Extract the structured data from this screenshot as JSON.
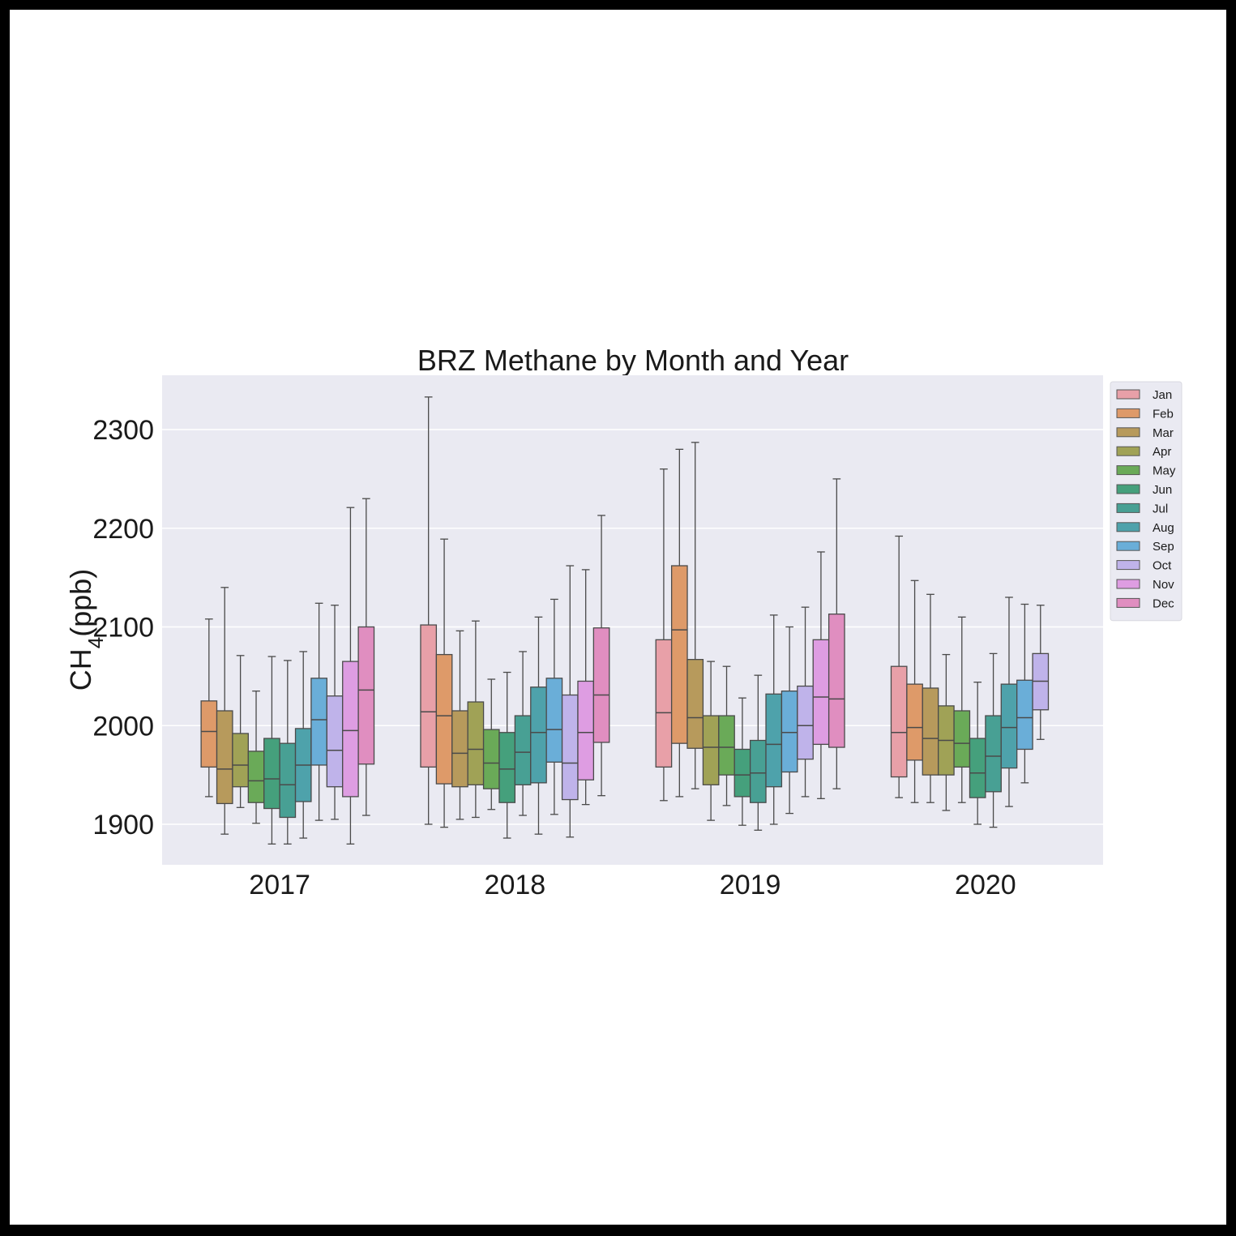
{
  "chart_data": {
    "type": "boxplot",
    "title": "BRZ Methane by Month and Year",
    "ylabel_main": "CH",
    "ylabel_sub": "4",
    "ylabel_tail": "(ppb)",
    "xlabel": "",
    "ylim": [
      1860,
      2355
    ],
    "yticks": [
      1900,
      2000,
      2100,
      2200,
      2300
    ],
    "grid": true,
    "legend_placement": "upper-right-outside",
    "categories": [
      "2017",
      "2018",
      "2019",
      "2020"
    ],
    "series": [
      {
        "name": "Jan",
        "color": "#e8a0a8",
        "boxes": [
          null,
          {
            "low": 1900,
            "q1": 1958,
            "median": 2014,
            "q3": 2102,
            "high": 2333
          },
          {
            "low": 1924,
            "q1": 1958,
            "median": 2013,
            "q3": 2087,
            "high": 2260
          },
          {
            "low": 1927,
            "q1": 1948,
            "median": 1993,
            "q3": 2060,
            "high": 2192
          }
        ]
      },
      {
        "name": "Feb",
        "color": "#de9a69",
        "boxes": [
          {
            "low": 1928,
            "q1": 1958,
            "median": 1994,
            "q3": 2025,
            "high": 2108
          },
          {
            "low": 1897,
            "q1": 1941,
            "median": 2010,
            "q3": 2072,
            "high": 2189
          },
          {
            "low": 1928,
            "q1": 1982,
            "median": 2097,
            "q3": 2162,
            "high": 2280
          },
          {
            "low": 1922,
            "q1": 1965,
            "median": 1998,
            "q3": 2042,
            "high": 2147
          }
        ]
      },
      {
        "name": "Mar",
        "color": "#b79a5c",
        "boxes": [
          {
            "low": 1890,
            "q1": 1921,
            "median": 1956,
            "q3": 2015,
            "high": 2140
          },
          {
            "low": 1905,
            "q1": 1938,
            "median": 1972,
            "q3": 2015,
            "high": 2096
          },
          {
            "low": 1936,
            "q1": 1977,
            "median": 2008,
            "q3": 2067,
            "high": 2287
          },
          {
            "low": 1922,
            "q1": 1950,
            "median": 1987,
            "q3": 2038,
            "high": 2133
          }
        ]
      },
      {
        "name": "Apr",
        "color": "#a0a256",
        "boxes": [
          {
            "low": 1917,
            "q1": 1938,
            "median": 1960,
            "q3": 1992,
            "high": 2071
          },
          {
            "low": 1907,
            "q1": 1940,
            "median": 1976,
            "q3": 2024,
            "high": 2106
          },
          {
            "low": 1904,
            "q1": 1940,
            "median": 1978,
            "q3": 2010,
            "high": 2065
          },
          {
            "low": 1914,
            "q1": 1950,
            "median": 1985,
            "q3": 2020,
            "high": 2072
          }
        ]
      },
      {
        "name": "May",
        "color": "#6aaa58",
        "boxes": [
          {
            "low": 1901,
            "q1": 1922,
            "median": 1944,
            "q3": 1974,
            "high": 2035
          },
          {
            "low": 1915,
            "q1": 1936,
            "median": 1962,
            "q3": 1996,
            "high": 2047
          },
          {
            "low": 1919,
            "q1": 1950,
            "median": 1978,
            "q3": 2010,
            "high": 2060
          },
          {
            "low": 1922,
            "q1": 1958,
            "median": 1982,
            "q3": 2015,
            "high": 2110
          }
        ]
      },
      {
        "name": "Jun",
        "color": "#45a07c",
        "boxes": [
          {
            "low": 1880,
            "q1": 1916,
            "median": 1946,
            "q3": 1987,
            "high": 2070
          },
          {
            "low": 1886,
            "q1": 1922,
            "median": 1956,
            "q3": 1993,
            "high": 2054
          },
          {
            "low": 1899,
            "q1": 1928,
            "median": 1950,
            "q3": 1976,
            "high": 2028
          },
          {
            "low": 1900,
            "q1": 1927,
            "median": 1952,
            "q3": 1987,
            "high": 2044
          }
        ]
      },
      {
        "name": "Jul",
        "color": "#48a094",
        "boxes": [
          {
            "low": 1880,
            "q1": 1907,
            "median": 1940,
            "q3": 1982,
            "high": 2066
          },
          {
            "low": 1909,
            "q1": 1940,
            "median": 1973,
            "q3": 2010,
            "high": 2075
          },
          {
            "low": 1894,
            "q1": 1922,
            "median": 1952,
            "q3": 1985,
            "high": 2051
          },
          {
            "low": 1897,
            "q1": 1933,
            "median": 1969,
            "q3": 2010,
            "high": 2073
          }
        ]
      },
      {
        "name": "Aug",
        "color": "#4ea2ab",
        "boxes": [
          {
            "low": 1886,
            "q1": 1923,
            "median": 1960,
            "q3": 1997,
            "high": 2075
          },
          {
            "low": 1890,
            "q1": 1942,
            "median": 1993,
            "q3": 2039,
            "high": 2110
          },
          {
            "low": 1900,
            "q1": 1938,
            "median": 1981,
            "q3": 2032,
            "high": 2112
          },
          {
            "low": 1918,
            "q1": 1957,
            "median": 1998,
            "q3": 2042,
            "high": 2130
          }
        ]
      },
      {
        "name": "Sep",
        "color": "#6aaed8",
        "boxes": [
          {
            "low": 1904,
            "q1": 1960,
            "median": 2006,
            "q3": 2048,
            "high": 2124
          },
          {
            "low": 1910,
            "q1": 1963,
            "median": 1996,
            "q3": 2048,
            "high": 2128
          },
          {
            "low": 1911,
            "q1": 1953,
            "median": 1993,
            "q3": 2035,
            "high": 2100
          },
          {
            "low": 1942,
            "q1": 1976,
            "median": 2008,
            "q3": 2046,
            "high": 2123
          }
        ]
      },
      {
        "name": "Oct",
        "color": "#bfb3ea",
        "boxes": [
          {
            "low": 1905,
            "q1": 1938,
            "median": 1975,
            "q3": 2030,
            "high": 2122
          },
          {
            "low": 1887,
            "q1": 1925,
            "median": 1962,
            "q3": 2031,
            "high": 2162
          },
          {
            "low": 1928,
            "q1": 1966,
            "median": 2000,
            "q3": 2040,
            "high": 2120
          },
          {
            "low": 1986,
            "q1": 2016,
            "median": 2045,
            "q3": 2073,
            "high": 2122
          }
        ]
      },
      {
        "name": "Nov",
        "color": "#de9de2",
        "boxes": [
          {
            "low": 1880,
            "q1": 1928,
            "median": 1995,
            "q3": 2065,
            "high": 2221
          },
          {
            "low": 1920,
            "q1": 1945,
            "median": 1993,
            "q3": 2045,
            "high": 2158
          },
          {
            "low": 1926,
            "q1": 1981,
            "median": 2029,
            "q3": 2087,
            "high": 2176
          },
          null
        ]
      },
      {
        "name": "Dec",
        "color": "#e08ec0",
        "boxes": [
          {
            "low": 1909,
            "q1": 1961,
            "median": 2036,
            "q3": 2100,
            "high": 2230
          },
          {
            "low": 1929,
            "q1": 1983,
            "median": 2031,
            "q3": 2099,
            "high": 2213
          },
          {
            "low": 1936,
            "q1": 1978,
            "median": 2027,
            "q3": 2113,
            "high": 2250
          },
          null
        ]
      }
    ]
  }
}
